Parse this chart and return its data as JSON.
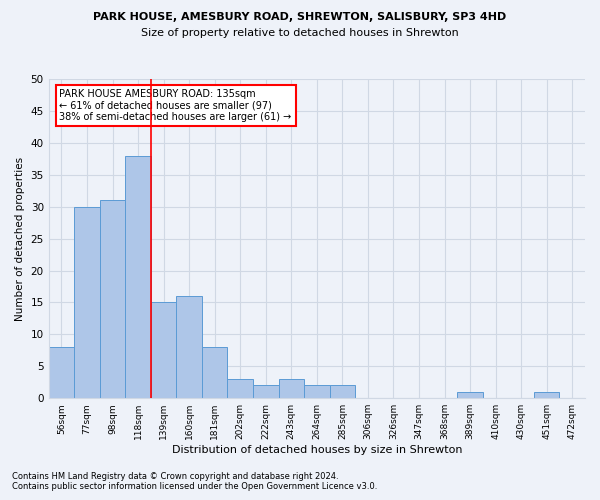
{
  "title": "PARK HOUSE, AMESBURY ROAD, SHREWTON, SALISBURY, SP3 4HD",
  "subtitle": "Size of property relative to detached houses in Shrewton",
  "xlabel": "Distribution of detached houses by size in Shrewton",
  "ylabel": "Number of detached properties",
  "bar_color": "#aec6e8",
  "bar_edge_color": "#5b9bd5",
  "grid_color": "#d0d8e4",
  "categories": [
    "56sqm",
    "77sqm",
    "98sqm",
    "118sqm",
    "139sqm",
    "160sqm",
    "181sqm",
    "202sqm",
    "222sqm",
    "243sqm",
    "264sqm",
    "285sqm",
    "306sqm",
    "326sqm",
    "347sqm",
    "368sqm",
    "389sqm",
    "410sqm",
    "430sqm",
    "451sqm",
    "472sqm"
  ],
  "values": [
    8,
    30,
    31,
    38,
    15,
    16,
    8,
    3,
    2,
    3,
    2,
    2,
    0,
    0,
    0,
    0,
    1,
    0,
    0,
    1,
    0
  ],
  "ylim": [
    0,
    50
  ],
  "yticks": [
    0,
    5,
    10,
    15,
    20,
    25,
    30,
    35,
    40,
    45,
    50
  ],
  "property_line_color": "red",
  "annotation_text": "PARK HOUSE AMESBURY ROAD: 135sqm\n← 61% of detached houses are smaller (97)\n38% of semi-detached houses are larger (61) →",
  "annotation_box_color": "white",
  "annotation_box_edge_color": "red",
  "footnote1": "Contains HM Land Registry data © Crown copyright and database right 2024.",
  "footnote2": "Contains public sector information licensed under the Open Government Licence v3.0.",
  "background_color": "#eef2f9"
}
